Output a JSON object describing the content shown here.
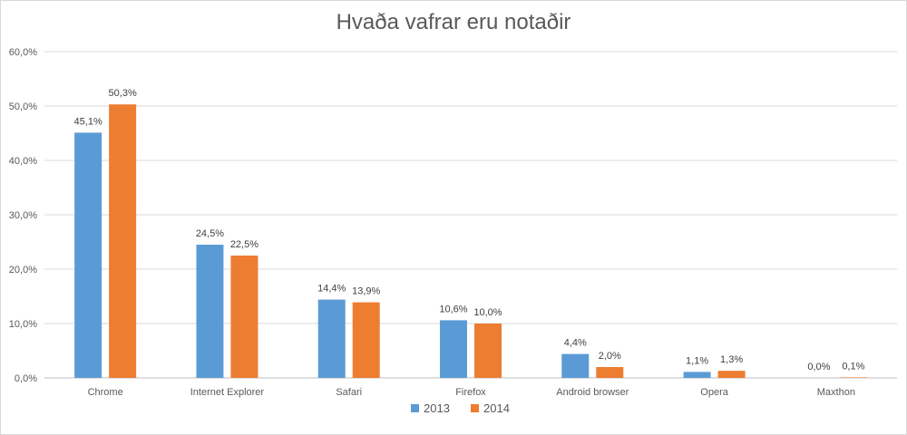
{
  "chart_data": {
    "type": "bar",
    "title": "Hvaða vafrar eru notaðir",
    "categories": [
      "Chrome",
      "Internet Explorer",
      "Safari",
      "Firefox",
      "Android browser",
      "Opera",
      "Maxthon"
    ],
    "series": [
      {
        "name": "2013",
        "color": "#5b9bd5",
        "values": [
          45.1,
          24.5,
          14.4,
          10.6,
          4.4,
          1.1,
          0.0
        ],
        "labels": [
          "45,1%",
          "24,5%",
          "14,4%",
          "10,6%",
          "4,4%",
          "1,1%",
          "0,0%"
        ]
      },
      {
        "name": "2014",
        "color": "#ed7d31",
        "values": [
          50.3,
          22.5,
          13.9,
          10.0,
          2.0,
          1.3,
          0.1
        ],
        "labels": [
          "50,3%",
          "22,5%",
          "13,9%",
          "10,0%",
          "2,0%",
          "1,3%",
          "0,1%"
        ]
      }
    ],
    "ylim": [
      0,
      60
    ],
    "yticks": [
      0,
      10,
      20,
      30,
      40,
      50,
      60
    ],
    "ytick_labels": [
      "0,0%",
      "10,0%",
      "20,0%",
      "30,0%",
      "40,0%",
      "50,0%",
      "60,0%"
    ],
    "grid": true,
    "legend_position": "bottom"
  }
}
